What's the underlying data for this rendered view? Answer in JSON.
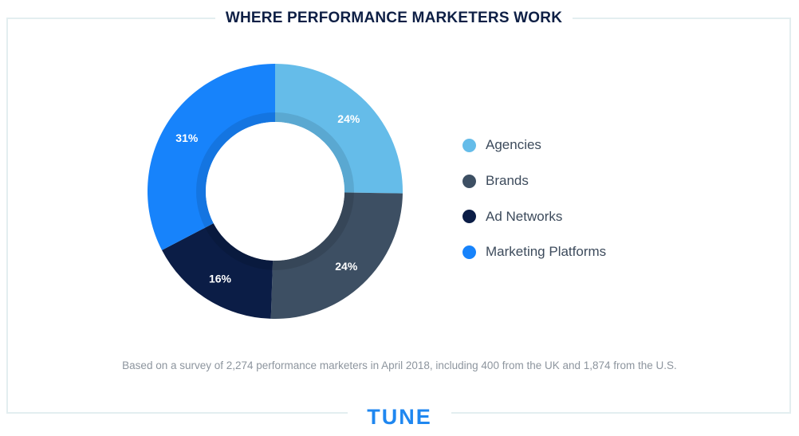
{
  "chart_data": {
    "type": "pie",
    "title": "WHERE PERFORMANCE MARKETERS WORK",
    "categories": [
      "Agencies",
      "Brands",
      "Ad Networks",
      "Marketing Platforms"
    ],
    "values": [
      24,
      24,
      16,
      31
    ],
    "value_labels": [
      "24%",
      "24%",
      "16%",
      "31%"
    ],
    "unit": "%",
    "donut": true,
    "legend_position": "right",
    "colors": [
      "#65bce9",
      "#3d4f63",
      "#0b1d46",
      "#1783fb"
    ]
  },
  "footnote": "Based on a survey of 2,274 performance marketers in April 2018, including 400 from the UK and 1,874 from the U.S.",
  "brand": {
    "logo_text": "TUNE",
    "color": "#1f87f0"
  }
}
